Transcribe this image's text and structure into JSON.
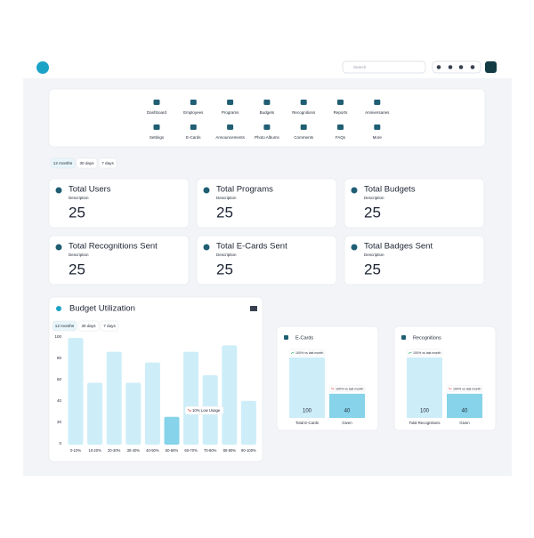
{
  "header": {
    "search_placeholder": "Search"
  },
  "nav": {
    "items": [
      "Dashboard",
      "Employees",
      "Programs",
      "Budgets",
      "Recognitions",
      "Reports",
      "Anniversaries",
      "Settings",
      "E-Cards",
      "Announcements",
      "Photo Albums",
      "Comments",
      "FAQs",
      "More"
    ]
  },
  "filters": [
    "12 months",
    "30 days",
    "7 days"
  ],
  "stats": [
    {
      "title": "Total Users",
      "description": "Description",
      "value": 25
    },
    {
      "title": "Total Programs",
      "description": "Description",
      "value": 25
    },
    {
      "title": "Total Budgets",
      "description": "Description",
      "value": 25
    },
    {
      "title": "Total Recognitions Sent",
      "description": "Description",
      "value": 25
    },
    {
      "title": "Total E-Cards Sent",
      "description": "Description",
      "value": 25
    },
    {
      "title": "Total Badges Sent",
      "description": "Description",
      "value": 25
    }
  ],
  "chart_data": [
    {
      "type": "bar",
      "title": "Budget Utilization",
      "filters": [
        "12 months",
        "30 days",
        "7 days"
      ],
      "categories": [
        "0-10%",
        "10-20%",
        "20-30%",
        "30-40%",
        "40-50%",
        "50-60%",
        "60-70%",
        "70-80%",
        "80-90%",
        "90-100%"
      ],
      "values": [
        100,
        58,
        87,
        58,
        77,
        26,
        87,
        65,
        93,
        41
      ],
      "colors": [
        "#cdeef8",
        "#cdeef8",
        "#cdeef8",
        "#cdeef8",
        "#cdeef8",
        "#86d3ea",
        "#cdeef8",
        "#cdeef8",
        "#cdeef8",
        "#cdeef8"
      ],
      "ylim": [
        0,
        100
      ],
      "yticks": [
        0,
        20,
        40,
        60,
        80,
        100
      ],
      "annotation": "10% Low Usage"
    },
    {
      "type": "bar",
      "title": "E-Cards",
      "categories": [
        "Total E-Cards",
        "Given"
      ],
      "values": [
        100,
        40
      ],
      "colors": [
        "#cdeef8",
        "#86d3ea"
      ],
      "annotations": [
        "100% vs last month",
        "100% vs last month"
      ]
    },
    {
      "type": "bar",
      "title": "Recognitions",
      "categories": [
        "Total Recognitions",
        "Given"
      ],
      "values": [
        100,
        40
      ],
      "colors": [
        "#cdeef8",
        "#86d3ea"
      ],
      "annotations": [
        "100% vs last month",
        "100% vs last month"
      ]
    }
  ]
}
